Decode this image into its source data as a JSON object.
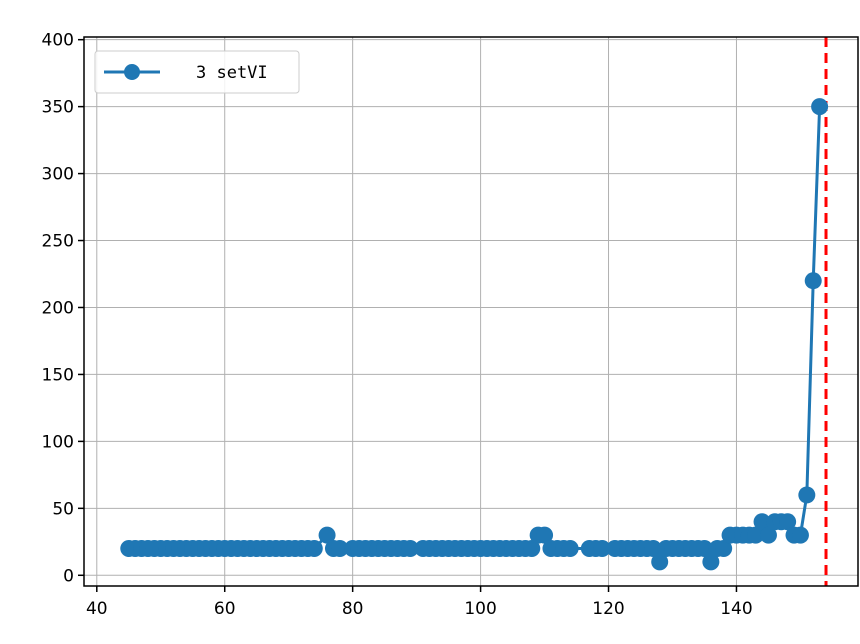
{
  "chart_data": {
    "type": "line",
    "title": "",
    "xlabel": "",
    "ylabel": "",
    "xlim": [
      38,
      159
    ],
    "ylim": [
      -8,
      402
    ],
    "xticks": [
      40,
      60,
      80,
      100,
      120,
      140
    ],
    "yticks": [
      0,
      50,
      100,
      150,
      200,
      250,
      300,
      350,
      400
    ],
    "grid": true,
    "legend_position": "top-left",
    "vline": {
      "x": 154,
      "color": "#ff0000",
      "style": "dashed"
    },
    "series": [
      {
        "name": "3 setVI",
        "color": "#1f77b4",
        "marker": "circle",
        "x": [
          45,
          46,
          47,
          48,
          49,
          50,
          51,
          52,
          53,
          54,
          55,
          56,
          57,
          58,
          59,
          60,
          61,
          62,
          63,
          64,
          65,
          66,
          67,
          68,
          69,
          70,
          71,
          72,
          73,
          74,
          76,
          77,
          78,
          80,
          81,
          82,
          83,
          84,
          85,
          86,
          87,
          88,
          89,
          91,
          92,
          93,
          94,
          95,
          96,
          97,
          98,
          99,
          100,
          101,
          102,
          103,
          104,
          105,
          106,
          107,
          108,
          109,
          110,
          111,
          112,
          113,
          114,
          117,
          118,
          119,
          121,
          122,
          123,
          124,
          125,
          126,
          127,
          128,
          129,
          130,
          131,
          132,
          133,
          134,
          135,
          136,
          137,
          138,
          139,
          140,
          141,
          142,
          143,
          144,
          145,
          146,
          147,
          148,
          149,
          150,
          151,
          152,
          153
        ],
        "y": [
          20,
          20,
          20,
          20,
          20,
          20,
          20,
          20,
          20,
          20,
          20,
          20,
          20,
          20,
          20,
          20,
          20,
          20,
          20,
          20,
          20,
          20,
          20,
          20,
          20,
          20,
          20,
          20,
          20,
          20,
          30,
          20,
          20,
          20,
          20,
          20,
          20,
          20,
          20,
          20,
          20,
          20,
          20,
          20,
          20,
          20,
          20,
          20,
          20,
          20,
          20,
          20,
          20,
          20,
          20,
          20,
          20,
          20,
          20,
          20,
          20,
          30,
          30,
          20,
          20,
          20,
          20,
          20,
          20,
          20,
          20,
          20,
          20,
          20,
          20,
          20,
          20,
          10,
          20,
          20,
          20,
          20,
          20,
          20,
          20,
          10,
          20,
          20,
          30,
          30,
          30,
          30,
          30,
          40,
          30,
          40,
          40,
          40,
          30,
          30,
          60,
          220,
          350
        ]
      }
    ]
  }
}
